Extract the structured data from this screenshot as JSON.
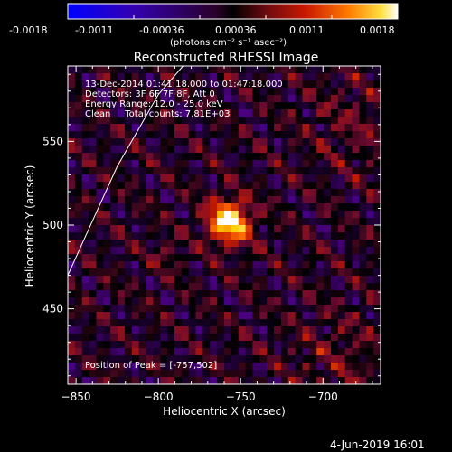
{
  "colorbar": {
    "ticks": [
      "-0.0018",
      "-0.0011",
      "-0.00036",
      "0.00036",
      "0.0011",
      "0.0018"
    ],
    "units": "(photons cm⁻² s⁻¹ asec⁻²)"
  },
  "info": {
    "time_range": "13-Dec-2014 01:41:18.000 to 01:47:18.000",
    "detectors": "Detectors: 3F 6F 7F 8F, Att 0",
    "energy": "Energy Range: 12.0 - 25.0 keV",
    "clean": "Clean     Total counts: 7.81E+03",
    "peak": "Position of Peak = [-757,502]"
  },
  "footer": {
    "date": "4-Jun-2019 16:01"
  },
  "chart_data": {
    "type": "heatmap",
    "title": "Reconstructed RHESSI Image",
    "xlabel": "Heliocentric X (arcsec)",
    "ylabel": "Heliocentric Y (arcsec)",
    "xlim": [
      -855,
      -665
    ],
    "ylim": [
      405,
      595
    ],
    "xticks": [
      -850,
      -800,
      -750,
      -700
    ],
    "yticks": [
      450,
      500,
      550
    ],
    "colorbar_range": [
      -0.0018,
      0.0018
    ],
    "peak": {
      "x": -757,
      "y": 502
    },
    "limb_line": [
      [
        -855,
        470
      ],
      [
        -825,
        535
      ],
      [
        -800,
        578
      ],
      [
        -785,
        595
      ]
    ],
    "colormap": [
      "#0000ff",
      "#2a00a0",
      "#4a0080",
      "#000000",
      "#6a0a30",
      "#c41a00",
      "#ff6a00",
      "#ffd000",
      "#ffffff"
    ]
  }
}
